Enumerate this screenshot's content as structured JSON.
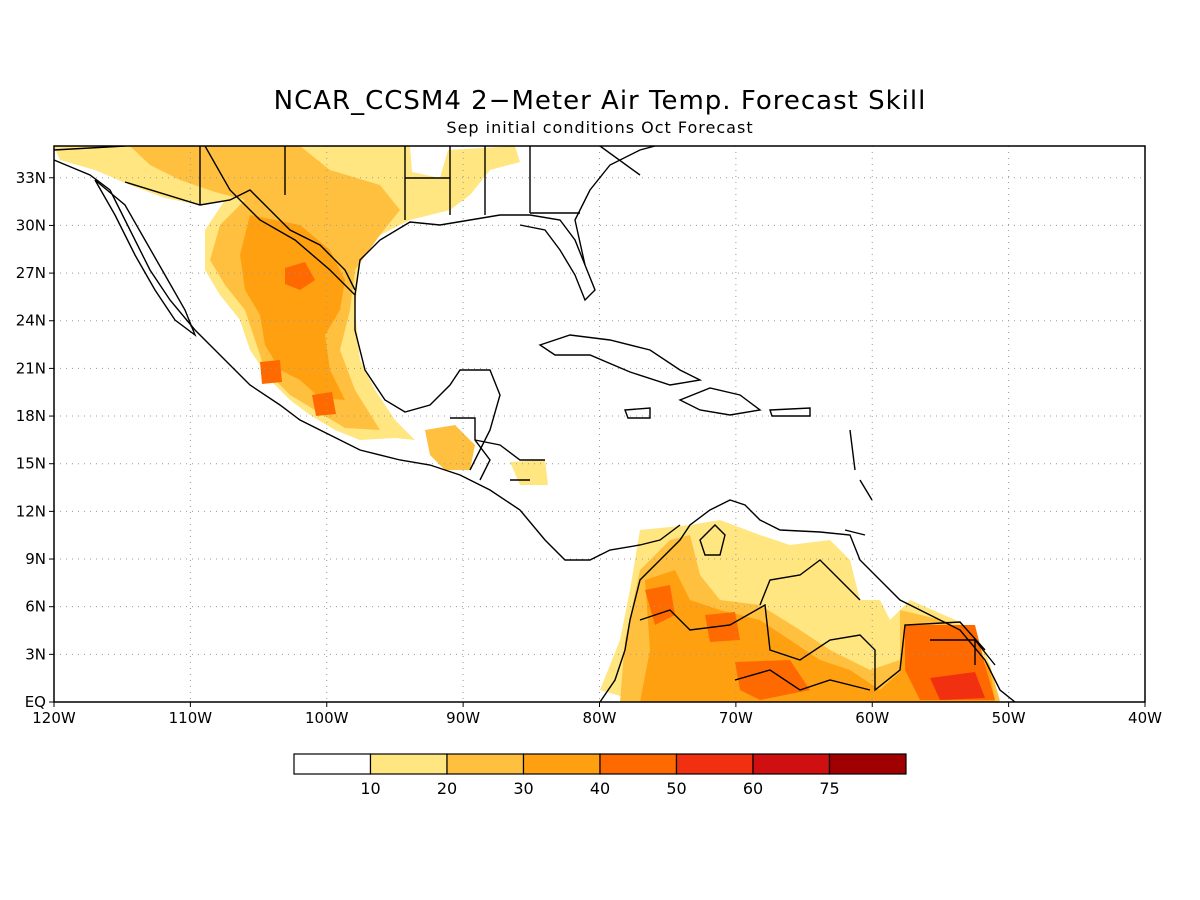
{
  "header": {
    "title": "NCAR_CCSM4 2−Meter Air Temp. Forecast Skill",
    "subtitle": "Sep initial conditions  Oct Forecast"
  },
  "map": {
    "lon_range": [
      -120,
      -40
    ],
    "lat_range": [
      0,
      35
    ],
    "x_ticks": [
      {
        "value": -120,
        "label": "120W"
      },
      {
        "value": -110,
        "label": "110W"
      },
      {
        "value": -100,
        "label": "100W"
      },
      {
        "value": -90,
        "label": "90W"
      },
      {
        "value": -80,
        "label": "80W"
      },
      {
        "value": -70,
        "label": "70W"
      },
      {
        "value": -60,
        "label": "60W"
      },
      {
        "value": -50,
        "label": "50W"
      },
      {
        "value": -40,
        "label": "40W"
      }
    ],
    "y_ticks": [
      {
        "value": 0,
        "label": "EQ"
      },
      {
        "value": 3,
        "label": "3N"
      },
      {
        "value": 6,
        "label": "6N"
      },
      {
        "value": 9,
        "label": "9N"
      },
      {
        "value": 12,
        "label": "12N"
      },
      {
        "value": 15,
        "label": "15N"
      },
      {
        "value": 18,
        "label": "18N"
      },
      {
        "value": 21,
        "label": "21N"
      },
      {
        "value": 24,
        "label": "24N"
      },
      {
        "value": 27,
        "label": "27N"
      },
      {
        "value": 30,
        "label": "30N"
      },
      {
        "value": 33,
        "label": "33N"
      }
    ],
    "grid": "dotted"
  },
  "legend": {
    "labels": [
      "10",
      "20",
      "30",
      "40",
      "50",
      "60",
      "75"
    ],
    "colors": [
      "#ffffff",
      "#ffe680",
      "#ffc040",
      "#ffa010",
      "#ff6a00",
      "#f03010",
      "#d01010",
      "#a00000"
    ]
  }
}
